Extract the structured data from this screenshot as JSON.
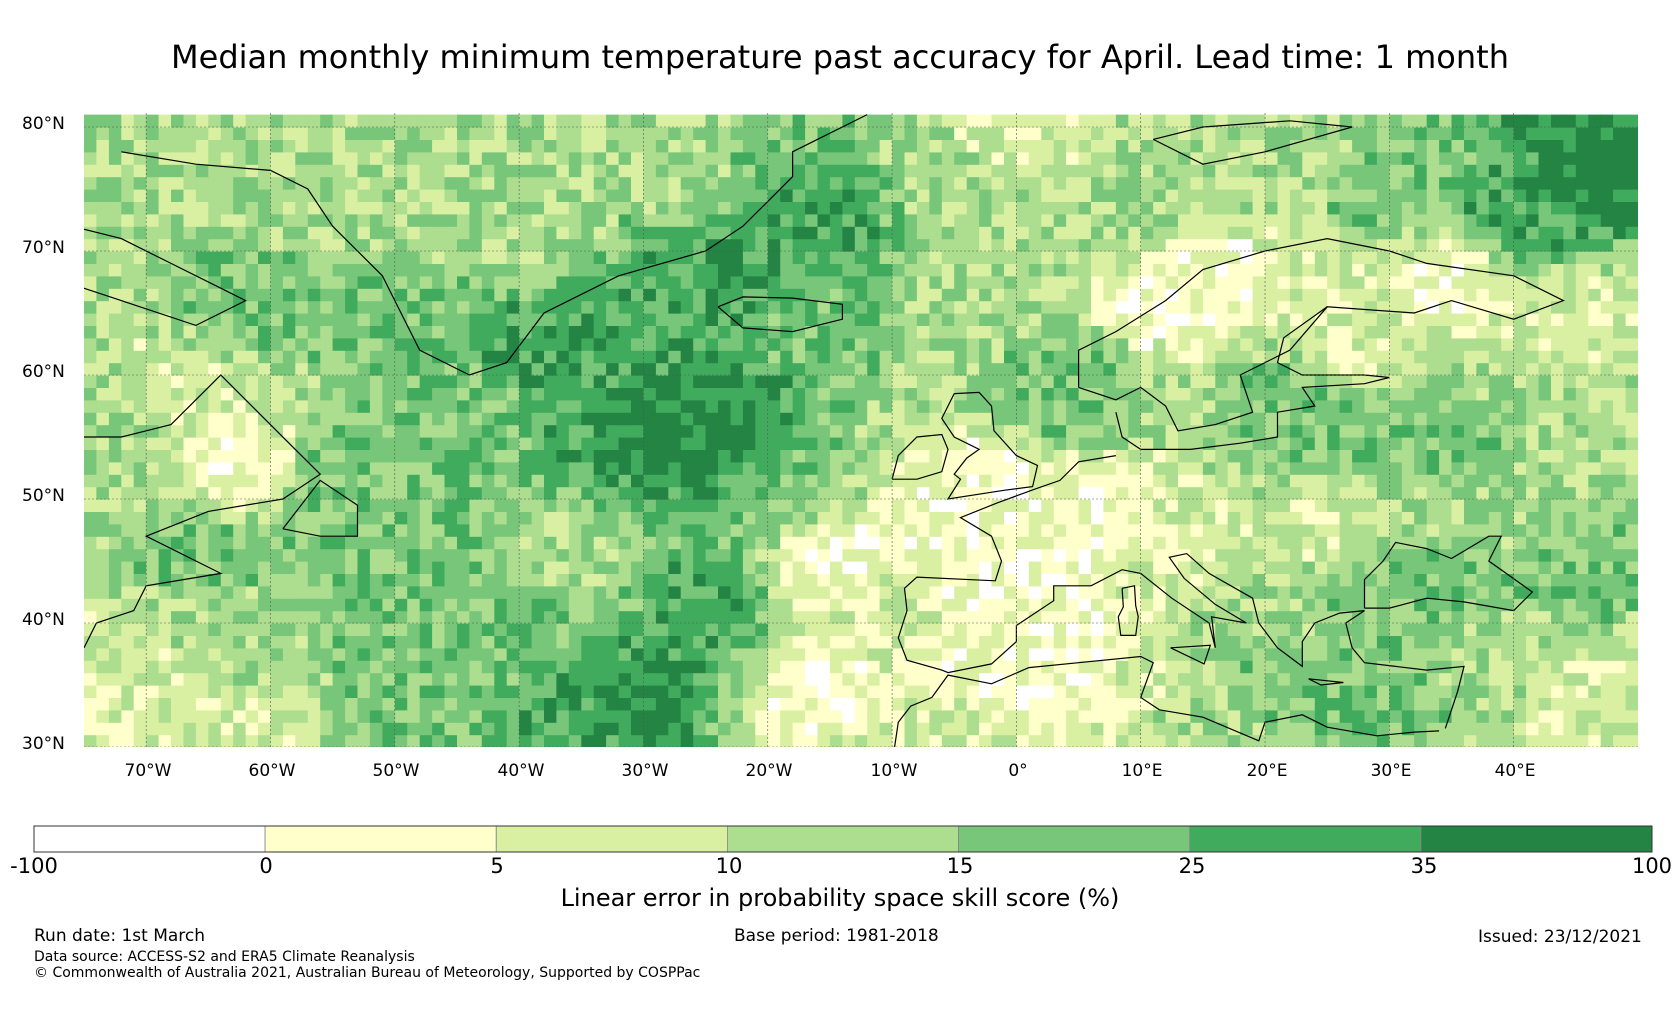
{
  "title": "Median monthly minimum temperature past accuracy for April. Lead time: 1 month",
  "map": {
    "lat_labels": [
      "80°N",
      "70°N",
      "60°N",
      "50°N",
      "40°N",
      "30°N"
    ],
    "lon_labels": [
      "70°W",
      "60°W",
      "50°W",
      "40°W",
      "30°W",
      "20°W",
      "10°W",
      "0°",
      "10°E",
      "20°E",
      "30°E",
      "40°E"
    ],
    "extent": {
      "lon_min": -75,
      "lon_max": 50,
      "lat_min": 30,
      "lat_max": 81
    }
  },
  "colorbar": {
    "ticks": [
      "-100",
      "0",
      "5",
      "10",
      "15",
      "25",
      "35",
      "100"
    ],
    "colors": [
      "#ffffff",
      "#ffffcc",
      "#d9f0a3",
      "#addd8e",
      "#78c679",
      "#41ab5d",
      "#238443"
    ],
    "label": "Linear error in probability space skill score (%)"
  },
  "footer": {
    "run_date": "Run date: 1st March",
    "base_period": "Base period: 1981-2018",
    "issued": "Issued: 23/12/2021",
    "data_source": "Data source: ACCESS-S2 and ERA5 Climate Reanalysis",
    "copyright": "© Commonwealth of Australia 2021, Australian Bureau of Meteorology, Supported by COSPPac"
  }
}
